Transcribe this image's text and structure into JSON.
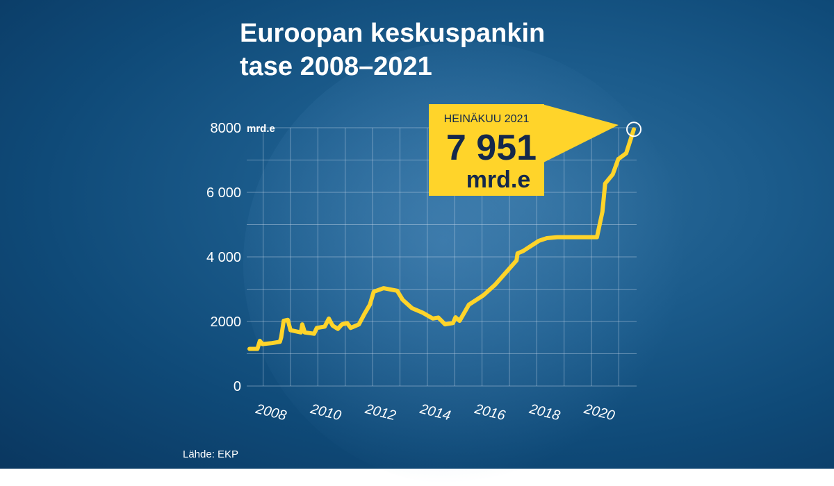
{
  "title_lines": [
    "Euroopan keskuspankin",
    "tase 2008–2021"
  ],
  "source": "Lähde: EKP",
  "callout": {
    "label": "HEINÄKUU 2021",
    "value": "7 951",
    "unit": "mrd.e"
  },
  "colors": {
    "line": "#ffd42a",
    "callout_bg": "#ffd42a",
    "callout_text": "#14284b",
    "grid": "#c8d8e8"
  },
  "chart_data": {
    "type": "line",
    "title": "Euroopan keskuspankin tase 2008–2021",
    "ylabel": "mrd.e",
    "ylim": [
      0,
      8000
    ],
    "xlim": [
      2007.45,
      2021.6
    ],
    "yticks": [
      0,
      2000,
      4000,
      6000,
      8000
    ],
    "ytick_labels": [
      "0",
      "2000",
      "4 000",
      "6 000",
      "8000"
    ],
    "xticks": [
      2008,
      2010,
      2012,
      2014,
      2016,
      2018,
      2020
    ],
    "xtick_labels": [
      "2008",
      "2010",
      "2012",
      "2014",
      "2016",
      "2018",
      "2020"
    ],
    "grid": true,
    "series": [
      {
        "name": "Tase",
        "x": [
          2007.5,
          2007.79,
          2007.88,
          2007.97,
          2008.32,
          2008.61,
          2008.66,
          2008.75,
          2008.9,
          2009.0,
          2009.38,
          2009.43,
          2009.52,
          2009.86,
          2009.96,
          2010.25,
          2010.4,
          2010.54,
          2010.73,
          2010.88,
          2011.07,
          2011.2,
          2011.5,
          2011.7,
          2011.9,
          2012.04,
          2012.4,
          2012.9,
          2013.1,
          2013.44,
          2013.83,
          2014.2,
          2014.4,
          2014.65,
          2014.94,
          2015.03,
          2015.18,
          2015.52,
          2016.05,
          2016.48,
          2017.26,
          2017.3,
          2017.5,
          2018.08,
          2018.37,
          2018.75,
          2020.2,
          2020.4,
          2020.5,
          2020.78,
          2020.98,
          2021.27,
          2021.55
        ],
        "values": [
          1150,
          1150,
          1400,
          1300,
          1330,
          1370,
          1510,
          2020,
          2050,
          1730,
          1660,
          1910,
          1660,
          1620,
          1800,
          1840,
          2090,
          1870,
          1770,
          1910,
          1950,
          1800,
          1910,
          2230,
          2520,
          2920,
          3030,
          2950,
          2670,
          2410,
          2270,
          2090,
          2120,
          1910,
          1950,
          2130,
          2020,
          2520,
          2810,
          3140,
          3890,
          4110,
          4180,
          4500,
          4580,
          4610,
          4610,
          5400,
          6270,
          6560,
          7030,
          7210,
          7951
        ]
      }
    ],
    "annotations": [
      {
        "text": "HEINÄKUU 2021 7 951 mrd.e",
        "x": 2021.55,
        "y": 7951
      }
    ]
  }
}
